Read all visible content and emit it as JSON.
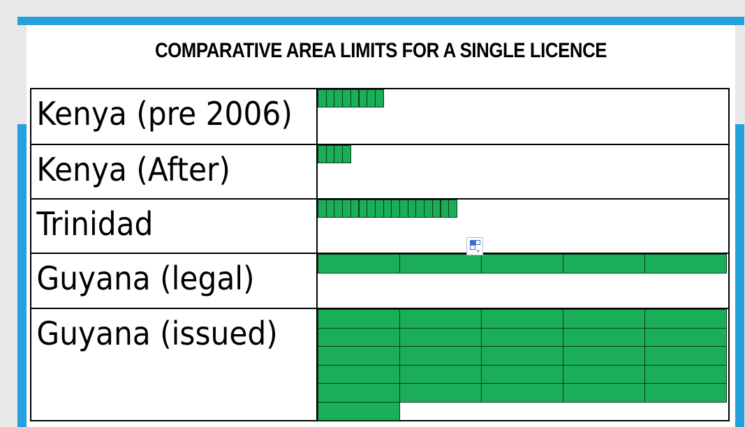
{
  "title": "COMPARATIVE AREA LIMITS FOR A SINGLE LICENCE",
  "rows": [
    {
      "label": "Kenya (pre 2006)",
      "blocks": 8,
      "block_unit": "small"
    },
    {
      "label": "Kenya (After)",
      "blocks": 4,
      "block_unit": "small"
    },
    {
      "label": "Trinidad",
      "blocks": 17,
      "block_unit": "small"
    },
    {
      "label": "Guyana (legal)",
      "blocks": 5,
      "block_unit": "large"
    },
    {
      "label": "Guyana (issued)",
      "blocks": 26,
      "block_unit": "large"
    }
  ],
  "colors": {
    "bar_fill": "#1aae58",
    "frame": "#24a0dc"
  },
  "icons": {
    "paste_options": "paste-options-icon"
  }
}
